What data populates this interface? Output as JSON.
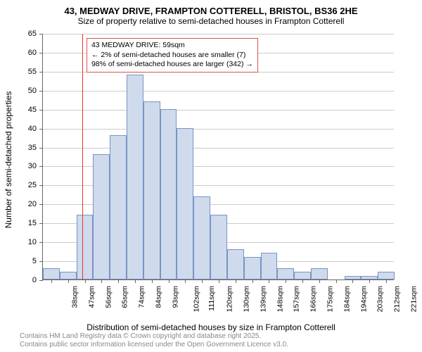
{
  "title": {
    "main": "43, MEDWAY DRIVE, FRAMPTON COTTERELL, BRISTOL, BS36 2HE",
    "sub": "Size of property relative to semi-detached houses in Frampton Cotterell"
  },
  "chart": {
    "type": "histogram",
    "background_color": "#ffffff",
    "grid_color": "#cccccc",
    "bar_fill": "#cfdaec",
    "bar_border": "#7a94c5",
    "marker_color": "#ee3524",
    "annotation_border": "#d9534f",
    "y_axis": {
      "label": "Number of semi-detached properties",
      "min": 0,
      "max": 65,
      "step": 5,
      "ticks": [
        0,
        5,
        10,
        15,
        20,
        25,
        30,
        35,
        40,
        45,
        50,
        55,
        60,
        65
      ]
    },
    "x_axis": {
      "label": "Distribution of semi-detached houses by size in Frampton Cotterell",
      "categories": [
        "38sqm",
        "47sqm",
        "56sqm",
        "65sqm",
        "74sqm",
        "84sqm",
        "93sqm",
        "102sqm",
        "111sqm",
        "120sqm",
        "130sqm",
        "139sqm",
        "148sqm",
        "157sqm",
        "166sqm",
        "175sqm",
        "184sqm",
        "194sqm",
        "203sqm",
        "212sqm",
        "221sqm"
      ]
    },
    "values": [
      3,
      2,
      17,
      33,
      38,
      54,
      47,
      45,
      40,
      22,
      17,
      8,
      6,
      7,
      3,
      2,
      3,
      0,
      1,
      1,
      2
    ],
    "bar_width_ratio": 1.0,
    "marker": {
      "bin_index": 2,
      "offset_within_bin": 0.35
    },
    "annotation": {
      "line1": "43 MEDWAY DRIVE: 59sqm",
      "line2": "← 2% of semi-detached houses are smaller (7)",
      "line3": "98% of semi-detached houses are larger (342) →"
    }
  },
  "footer": {
    "line1": "Contains HM Land Registry data © Crown copyright and database right 2025.",
    "line2": "Contains public sector information licensed under the Open Government Licence v3.0."
  },
  "fonts": {
    "title_size": 13,
    "subtitle_size": 12,
    "axis_label_size": 12,
    "tick_size": 11,
    "annotation_size": 10.5,
    "footer_size": 10
  }
}
